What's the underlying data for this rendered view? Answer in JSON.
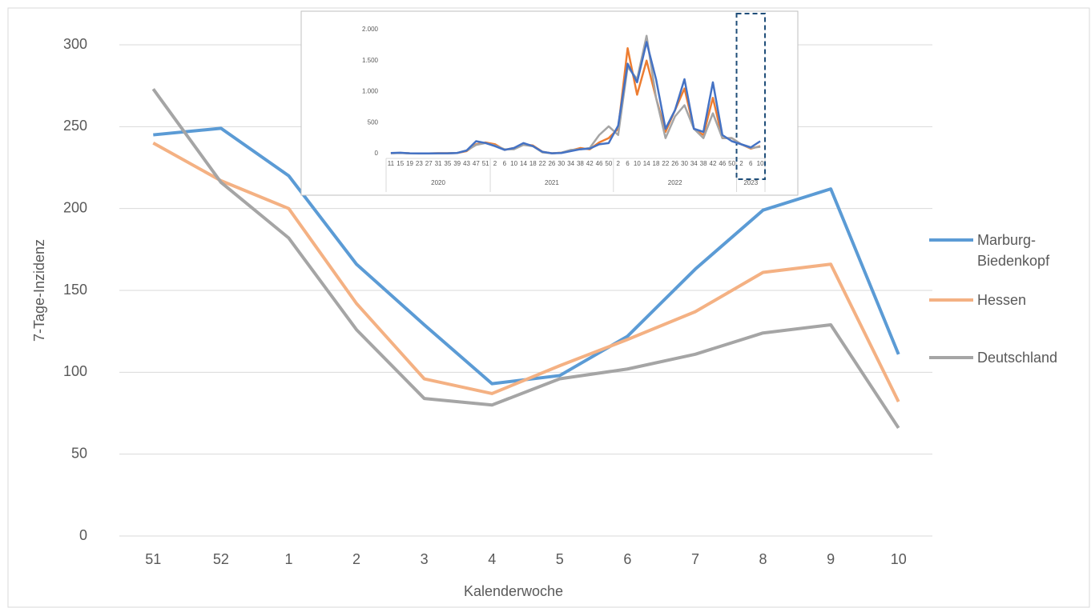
{
  "chart_data": [
    {
      "type": "line",
      "x_label": "Kalenderwoche",
      "y_label": "7-Tage-Inzidenz",
      "categories": [
        "51",
        "52",
        "1",
        "2",
        "3",
        "4",
        "5",
        "6",
        "7",
        "8",
        "9",
        "10"
      ],
      "series": [
        {
          "name": "Marburg-Biedenkopf",
          "color": "#5b9bd5",
          "values": [
            245,
            249,
            220,
            166,
            129,
            93,
            98,
            122,
            163,
            199,
            212,
            111
          ]
        },
        {
          "name": "Hessen",
          "color": "#f4b183",
          "values": [
            240,
            217,
            200,
            142,
            96,
            87,
            104,
            120,
            137,
            161,
            166,
            82
          ]
        },
        {
          "name": "Deutschland",
          "color": "#a5a5a5",
          "values": [
            273,
            216,
            182,
            126,
            84,
            80,
            96,
            102,
            111,
            124,
            129,
            66
          ]
        }
      ],
      "ylim": [
        0,
        300
      ],
      "yticks": [
        0,
        50,
        100,
        150,
        200,
        250,
        300
      ],
      "grid": true,
      "legend": "right"
    },
    {
      "type": "line",
      "categories": [
        "11",
        "15",
        "19",
        "23",
        "27",
        "31",
        "35",
        "39",
        "43",
        "47",
        "51",
        "2",
        "6",
        "10",
        "14",
        "18",
        "22",
        "26",
        "30",
        "34",
        "38",
        "42",
        "46",
        "50",
        "2",
        "6",
        "10",
        "14",
        "18",
        "22",
        "26",
        "30",
        "34",
        "38",
        "42",
        "46",
        "50",
        "2",
        "6",
        "10"
      ],
      "groups": [
        "2020",
        "2021",
        "2022",
        "2023"
      ],
      "series": [
        {
          "name": "Hessen",
          "color": "#ed7d31",
          "values": [
            8,
            12,
            5,
            3,
            3,
            6,
            6,
            10,
            40,
            150,
            180,
            150,
            60,
            90,
            150,
            130,
            30,
            5,
            15,
            50,
            90,
            70,
            180,
            250,
            400,
            1700,
            950,
            1500,
            900,
            350,
            700,
            1050,
            400,
            300,
            900,
            250,
            250,
            150,
            80,
            120
          ]
        },
        {
          "name": "Deutschland",
          "color": "#a5a5a5",
          "values": [
            5,
            10,
            4,
            2,
            2,
            4,
            5,
            10,
            50,
            140,
            170,
            130,
            70,
            70,
            140,
            120,
            20,
            5,
            15,
            60,
            70,
            90,
            300,
            440,
            300,
            1400,
            1200,
            1900,
            900,
            250,
            600,
            780,
            400,
            250,
            650,
            250,
            250,
            150,
            90,
            110
          ]
        },
        {
          "name": "Marburg-Biedenkopf",
          "color": "#4472c4",
          "values": [
            10,
            15,
            5,
            3,
            3,
            5,
            5,
            10,
            50,
            200,
            170,
            120,
            60,
            90,
            170,
            120,
            30,
            5,
            10,
            40,
            70,
            80,
            150,
            170,
            450,
            1450,
            1150,
            1800,
            1200,
            400,
            700,
            1200,
            400,
            350,
            1150,
            300,
            200,
            150,
            100,
            200
          ]
        }
      ],
      "ylim": [
        0,
        2000
      ],
      "yticks": [
        0,
        500,
        {
          "value": 1000,
          "label": "1.000"
        },
        {
          "value": 1500,
          "label": "1.500"
        },
        {
          "value": 2000,
          "label": "2.000"
        }
      ],
      "grid": false
    }
  ]
}
